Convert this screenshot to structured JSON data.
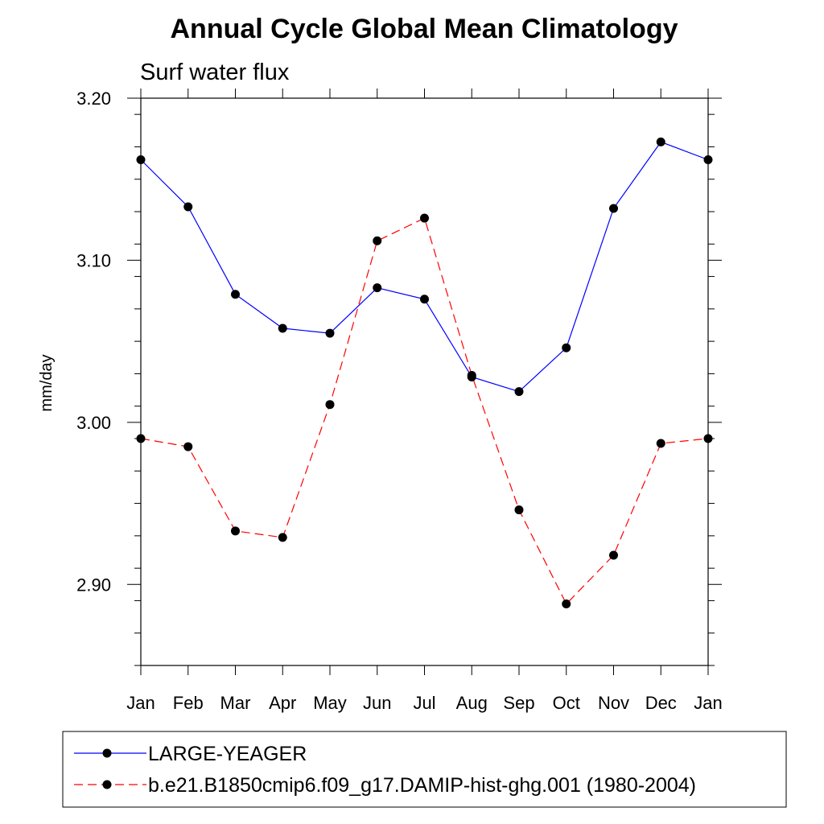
{
  "chart_data": {
    "type": "line",
    "title": "Annual Cycle Global Mean Climatology",
    "subtitle": "Surf water flux",
    "xlabel": "",
    "ylabel": "mm/day",
    "categories": [
      "Jan",
      "Feb",
      "Mar",
      "Apr",
      "May",
      "Jun",
      "Jul",
      "Aug",
      "Sep",
      "Oct",
      "Nov",
      "Dec",
      "Jan"
    ],
    "ylim": [
      2.85,
      3.2
    ],
    "yticks": [
      2.9,
      3.0,
      3.1,
      3.2
    ],
    "ytick_labels": [
      "2.90",
      "3.00",
      "3.10",
      "3.20"
    ],
    "grid": false,
    "legend_position": "bottom",
    "series": [
      {
        "name": "LARGE-YEAGER",
        "color": "#0000ff",
        "line_style": "solid",
        "marker": "circle",
        "values": [
          3.162,
          3.133,
          3.079,
          3.058,
          3.055,
          3.083,
          3.076,
          3.028,
          3.019,
          3.046,
          3.132,
          3.173,
          3.162
        ]
      },
      {
        "name": "b.e21.B1850cmip6.f09_g17.DAMIP-hist-ghg.001 (1980-2004)",
        "color": "#ff0000",
        "line_style": "dashed",
        "marker": "circle",
        "values": [
          2.99,
          2.985,
          2.933,
          2.929,
          3.011,
          3.112,
          3.126,
          3.029,
          2.946,
          2.888,
          2.918,
          2.987,
          2.99
        ]
      }
    ]
  }
}
